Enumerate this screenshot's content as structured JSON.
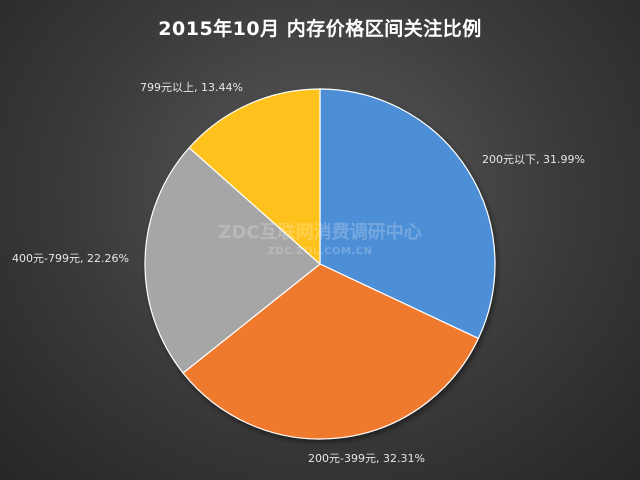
{
  "chart_data": {
    "type": "pie",
    "title": "2015年10月  内存价格区间关注比例",
    "start_angle_deg": 0,
    "direction": "clockwise",
    "slices": [
      {
        "label": "200元以下, 31.99%",
        "value": 31.99,
        "color": "#4d8fd6"
      },
      {
        "label": "200元-399元, 32.31%",
        "value": 32.31,
        "color": "#ef7a2d"
      },
      {
        "label": "400元-799元, 22.26%",
        "value": 22.26,
        "color": "#a6a6a6"
      },
      {
        "label": "799元以上, 13.44%",
        "value": 13.44,
        "color": "#ffc21a"
      }
    ]
  },
  "watermark": {
    "main": "ZDC互联网消费调研中心",
    "sub": "ZDC.ZOL.COM.CN"
  }
}
